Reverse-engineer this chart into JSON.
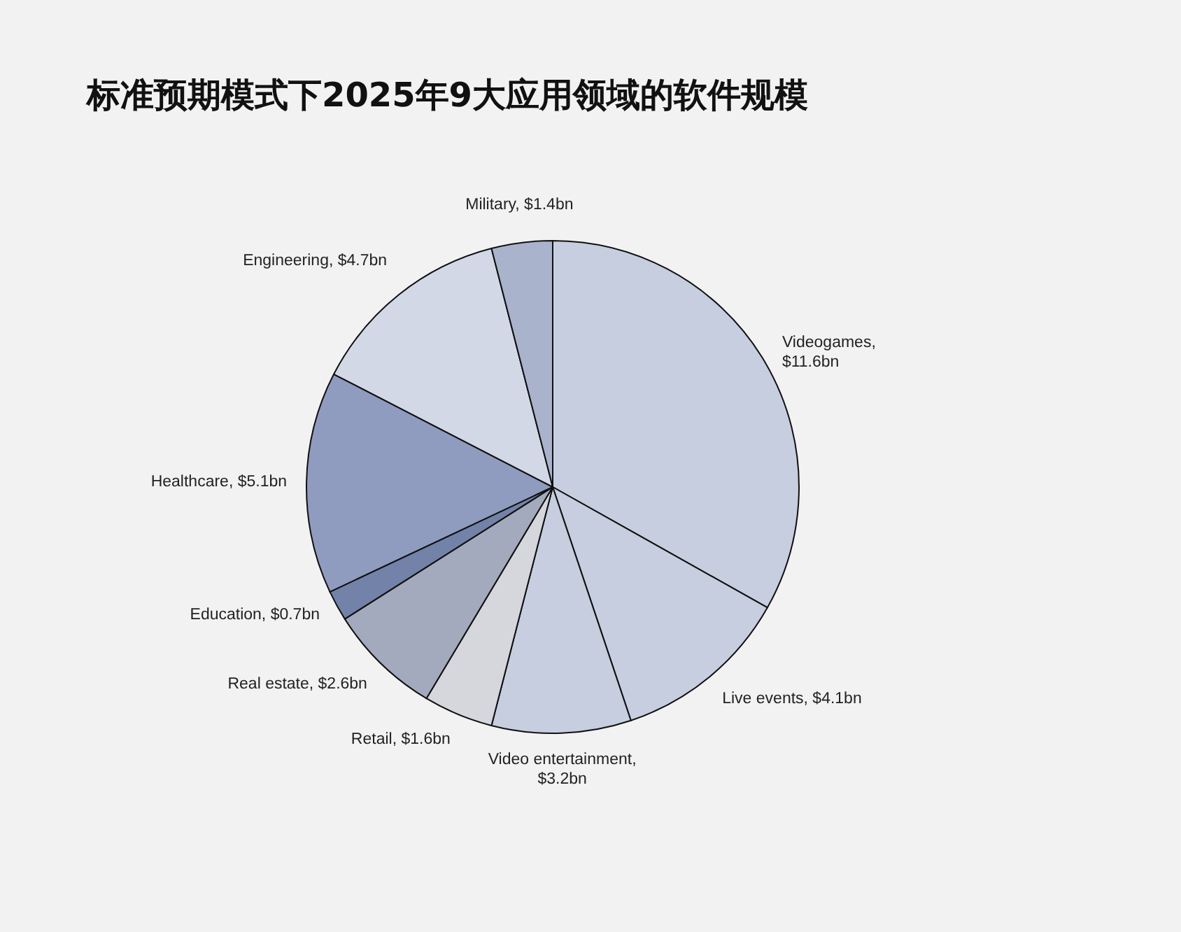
{
  "chart_data": {
    "type": "pie",
    "title": "标准预期模式下2025年9大应用领域的软件规模",
    "categories": [
      "Videogames, $11.6bn",
      "Live events, $4.1bn",
      "Video entertainment, $3.2bn",
      "Retail, $1.6bn",
      "Real estate, $2.6bn",
      "Education, $0.7bn",
      "Healthcare, $5.1bn",
      "Engineering, $4.7bn",
      "Military, $1.4bn"
    ],
    "values": [
      11.6,
      4.1,
      3.2,
      1.6,
      2.6,
      0.7,
      5.1,
      4.7,
      1.4
    ],
    "colors": [
      "#c6cee0",
      "#c6cee0",
      "#c6cee0",
      "#d5d7dc",
      "#a3aabd",
      "#7282a8",
      "#8f9cbf",
      "#d3d8e6",
      "#aab3cc"
    ],
    "legend": false
  }
}
